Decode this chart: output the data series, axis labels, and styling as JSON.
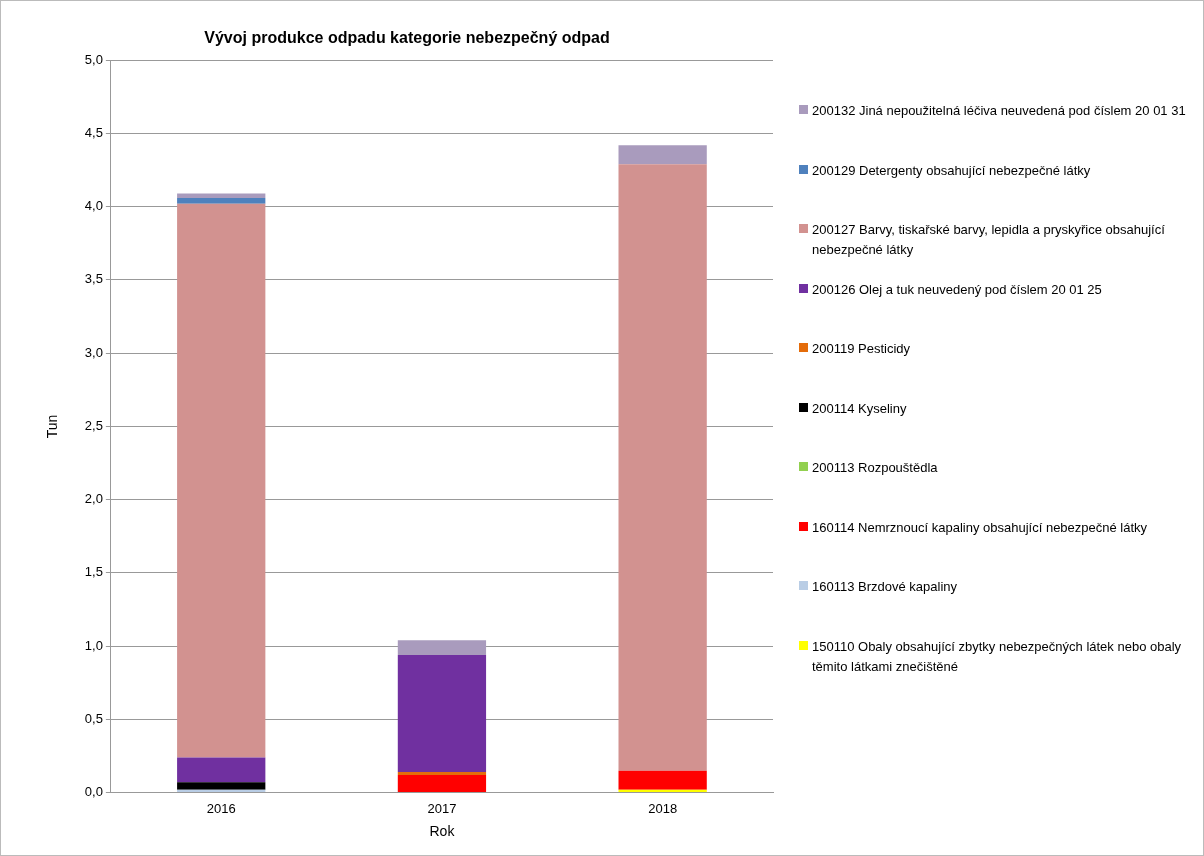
{
  "chart_data": {
    "type": "bar",
    "title": "Vývoj produkce odpadu kategorie nebezpečný odpad",
    "xlabel": "Rok",
    "ylabel": "Tun",
    "categories": [
      "2016",
      "2017",
      "2018"
    ],
    "stacked": true,
    "ylim": [
      0,
      5
    ],
    "yticks": [
      {
        "value": 0,
        "label": "0,0"
      },
      {
        "value": 0.5,
        "label": "0,5"
      },
      {
        "value": 1,
        "label": "1,0"
      },
      {
        "value": 1.5,
        "label": "1,5"
      },
      {
        "value": 2,
        "label": "2,0"
      },
      {
        "value": 2.5,
        "label": "2,5"
      },
      {
        "value": 3,
        "label": "3,0"
      },
      {
        "value": 3.5,
        "label": "3,5"
      },
      {
        "value": 4,
        "label": "4,0"
      },
      {
        "value": 4.5,
        "label": "4,5"
      },
      {
        "value": 5,
        "label": "5,0"
      }
    ],
    "grid": "y",
    "legend": "right",
    "series": [
      {
        "name": "150110 Obaly obsahující zbytky nebezpečných látek nebo obaly těmito látkami znečištěné",
        "color": "#ffff00",
        "values": [
          null,
          null,
          0.02
        ]
      },
      {
        "name": "160113 Brzdové kapaliny",
        "color": "#b9cde5",
        "values": [
          0.02,
          null,
          null
        ]
      },
      {
        "name": "160114 Nemrznoucí kapaliny obsahující nebezpečné látky",
        "color": "#ff0000",
        "values": [
          null,
          0.12,
          0.13
        ]
      },
      {
        "name": "200113 Rozpouštědla",
        "color": "#92d050",
        "values": [
          null,
          null,
          null
        ]
      },
      {
        "name": "200114 Kyseliny",
        "color": "#000000",
        "values": [
          0.05,
          null,
          null
        ]
      },
      {
        "name": "200119 Pesticidy",
        "color": "#e46c0a",
        "values": [
          null,
          0.02,
          null
        ]
      },
      {
        "name": "200126 Olej a tuk neuvedený pod číslem 20 01 25",
        "color": "#7030a0",
        "values": [
          0.17,
          0.8,
          null
        ]
      },
      {
        "name": "200127 Barvy, tiskařské barvy, lepidla a pryskyřice obsahující nebezpečné látky",
        "color": "#d29290",
        "values": [
          3.78,
          null,
          4.14
        ]
      },
      {
        "name": "200129 Detergenty obsahující nebezpečné látky",
        "color": "#4f81bd",
        "values": [
          0.04,
          null,
          null
        ]
      },
      {
        "name": "200132 Jiná nepoužitelná léčiva neuvedená pod číslem 20 01 31",
        "color": "#a99bbd",
        "values": [
          0.03,
          0.1,
          0.13
        ]
      }
    ]
  }
}
